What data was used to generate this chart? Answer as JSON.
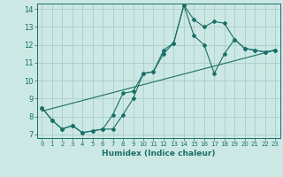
{
  "title": "",
  "xlabel": "Humidex (Indice chaleur)",
  "bg_color": "#cce8e4",
  "grid_color": "#aaccca",
  "line_color": "#1a7068",
  "xlim": [
    -0.5,
    23.5
  ],
  "ylim": [
    6.8,
    14.3
  ],
  "xticks": [
    0,
    1,
    2,
    3,
    4,
    5,
    6,
    7,
    8,
    9,
    10,
    11,
    12,
    13,
    14,
    15,
    16,
    17,
    18,
    19,
    20,
    21,
    22,
    23
  ],
  "yticks": [
    7,
    8,
    9,
    10,
    11,
    12,
    13,
    14
  ],
  "series1_x": [
    0,
    1,
    2,
    3,
    4,
    5,
    6,
    7,
    8,
    9,
    10,
    11,
    12,
    13,
    14,
    15,
    16,
    17,
    18,
    19,
    20,
    21,
    22,
    23
  ],
  "series1_y": [
    8.5,
    7.8,
    7.3,
    7.5,
    7.1,
    7.2,
    7.3,
    7.3,
    8.1,
    9.0,
    10.4,
    10.5,
    11.7,
    12.1,
    14.2,
    13.4,
    13.0,
    13.3,
    13.2,
    12.3,
    11.8,
    11.7,
    11.6,
    11.7
  ],
  "series2_x": [
    0,
    1,
    2,
    3,
    4,
    5,
    6,
    7,
    8,
    9,
    10,
    11,
    12,
    13,
    14,
    15,
    16,
    17,
    18,
    19,
    20,
    21,
    22,
    23
  ],
  "series2_y": [
    8.5,
    7.8,
    7.3,
    7.5,
    7.1,
    7.2,
    7.3,
    8.1,
    9.3,
    9.4,
    10.4,
    10.5,
    11.5,
    12.1,
    14.2,
    12.5,
    12.0,
    10.4,
    11.5,
    12.3,
    11.8,
    11.7,
    11.6,
    11.7
  ],
  "series3_x": [
    0,
    23
  ],
  "series3_y": [
    8.3,
    11.7
  ]
}
